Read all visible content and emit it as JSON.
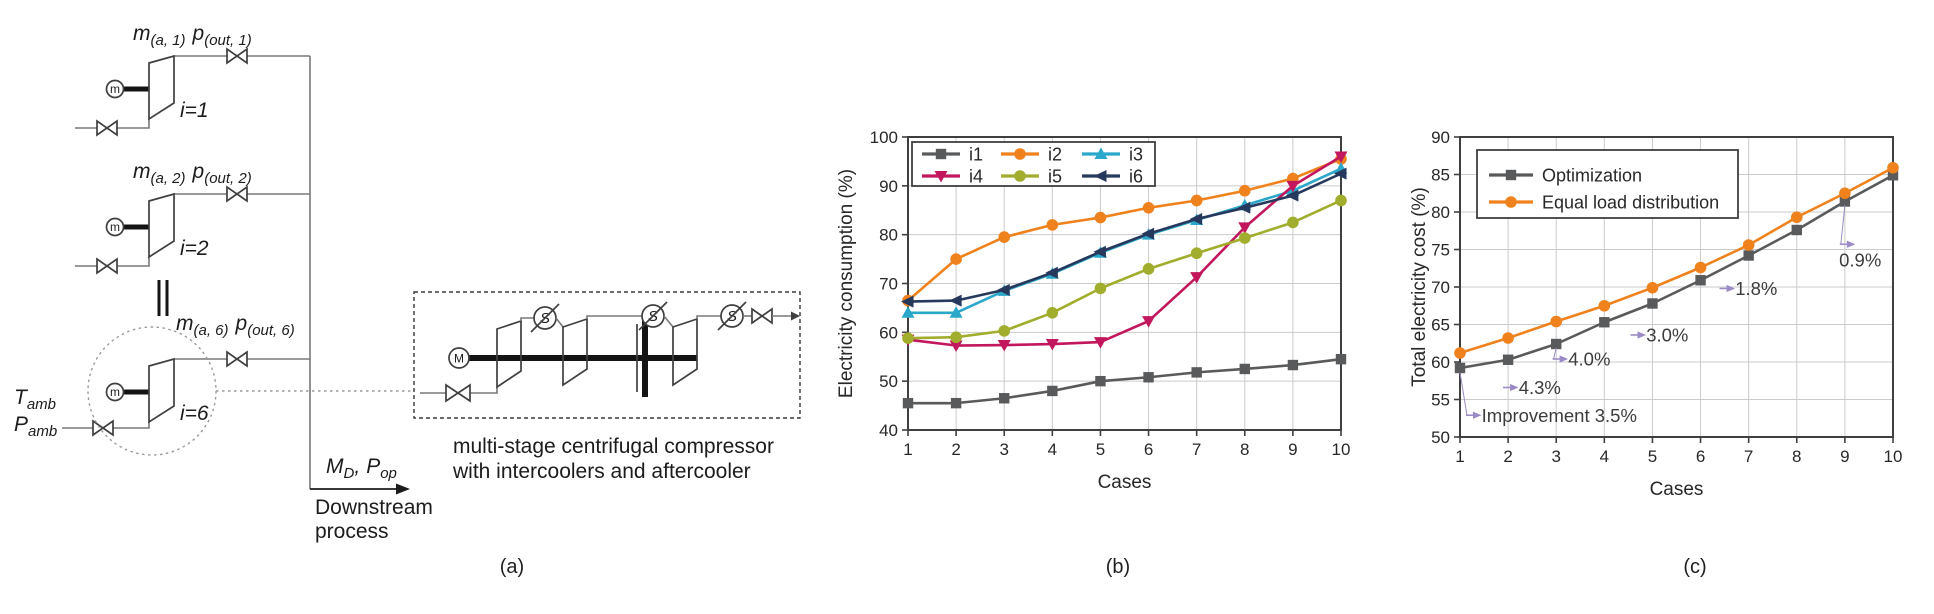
{
  "figure": {
    "captions": {
      "a": "(a)",
      "b": "(b)",
      "c": "(c)"
    }
  },
  "diagram": {
    "units": [
      {
        "m": "m",
        "m_sub": "(a, 1)",
        "p": "p",
        "p_sub": "(out, 1)",
        "i": "i=1",
        "motor": "m"
      },
      {
        "m": "m",
        "m_sub": "(a, 2)",
        "p": "p",
        "p_sub": "(out, 2)",
        "i": "i=2",
        "motor": "m"
      },
      {
        "m": "m",
        "m_sub": "(a, 6)",
        "p": "p",
        "p_sub": "(out, 6)",
        "i": "i=6",
        "motor": "m"
      }
    ],
    "t_amb": {
      "main": "T",
      "sub": "amb"
    },
    "p_amb": {
      "main": "P",
      "sub": "amb"
    },
    "md_pop": {
      "m_main": "M",
      "m_sub": "D",
      "sep": ",",
      "p_main": "P",
      "p_sub": "op"
    },
    "downstream": [
      "Downstream",
      "process"
    ],
    "detail_motor_label": "M",
    "cooler_label": "S",
    "detail_caption": [
      "multi-stage centrifugal compressor",
      "with intercoolers and aftercooler"
    ]
  },
  "chart_data": [
    {
      "id": "electricity-consumption",
      "type": "line",
      "title": "",
      "xlabel": "Cases",
      "ylabel": "Electricity consumption (%)",
      "xlim": [
        1,
        10
      ],
      "ylim": [
        40,
        100
      ],
      "xticks": [
        1,
        2,
        3,
        4,
        5,
        6,
        7,
        8,
        9,
        10
      ],
      "yticks": [
        40,
        50,
        60,
        70,
        80,
        90,
        100
      ],
      "grid": true,
      "legend_position": "top-left",
      "categories": [
        1,
        2,
        3,
        4,
        5,
        6,
        7,
        8,
        9,
        10
      ],
      "series": [
        {
          "name": "i1",
          "color": "#595a5c",
          "marker": "square",
          "values": [
            45.5,
            45.5,
            46.5,
            48.0,
            50.0,
            50.8,
            51.8,
            52.5,
            53.3,
            54.5
          ]
        },
        {
          "name": "i2",
          "color": "#f0821e",
          "marker": "circle",
          "values": [
            66.5,
            75.0,
            79.5,
            82.0,
            83.5,
            85.5,
            87.0,
            89.0,
            91.5,
            95.5
          ]
        },
        {
          "name": "i3",
          "color": "#2ba7c9",
          "marker": "triangle-up",
          "values": [
            64.0,
            64.0,
            68.5,
            72.0,
            76.3,
            80.0,
            83.0,
            86.0,
            89.0,
            93.5
          ]
        },
        {
          "name": "i4",
          "color": "#c2175d",
          "marker": "triangle-down",
          "values": [
            58.5,
            57.3,
            57.4,
            57.6,
            58.0,
            62.3,
            71.3,
            81.5,
            90.0,
            96.0
          ]
        },
        {
          "name": "i5",
          "color": "#a1ad2c",
          "marker": "circle",
          "values": [
            58.8,
            59.0,
            60.3,
            64.0,
            69.0,
            73.0,
            76.2,
            79.3,
            82.5,
            87.0
          ]
        },
        {
          "name": "i6",
          "color": "#26395c",
          "marker": "triangle-left",
          "values": [
            66.3,
            66.5,
            68.7,
            72.2,
            76.5,
            80.2,
            83.2,
            85.5,
            88.0,
            92.5
          ]
        }
      ]
    },
    {
      "id": "total-electricity-cost",
      "type": "line",
      "title": "",
      "xlabel": "Cases",
      "ylabel": "Total electricity cost (%)",
      "xlim": [
        1,
        10
      ],
      "ylim": [
        50,
        90
      ],
      "xticks": [
        1,
        2,
        3,
        4,
        5,
        6,
        7,
        8,
        9,
        10
      ],
      "yticks": [
        50,
        55,
        60,
        65,
        70,
        75,
        80,
        85,
        90
      ],
      "grid": true,
      "legend_position": "top-left",
      "annotation_color": "#9b8ac5",
      "categories": [
        1,
        2,
        3,
        4,
        5,
        6,
        7,
        8,
        9,
        10
      ],
      "series": [
        {
          "name": "Optimization",
          "color": "#595a5c",
          "marker": "square",
          "values": [
            59.2,
            60.3,
            62.4,
            65.3,
            67.8,
            70.9,
            74.2,
            77.6,
            81.4,
            84.9
          ]
        },
        {
          "name": "Equal load distribution",
          "color": "#f0821e",
          "marker": "circle",
          "values": [
            61.2,
            63.2,
            65.4,
            67.5,
            69.9,
            72.6,
            75.6,
            79.3,
            82.5,
            85.9
          ]
        }
      ],
      "annotations": [
        {
          "text": "Improvement 3.5%",
          "leader": true,
          "from_x": 1,
          "from_y": 58.6,
          "arrow_x": 1.27,
          "arrow_y": 52.9,
          "text_x": 1.45,
          "text_y": 52.9
        },
        {
          "text": "4.3%",
          "leader": false,
          "from_x": 2,
          "from_y": 60.3,
          "arrow_x": 2.04,
          "arrow_y": 56.6,
          "text_x": 2.22,
          "text_y": 56.6
        },
        {
          "text": "4.0%",
          "leader": true,
          "from_x": 3,
          "from_y": 61.9,
          "arrow_x": 3.07,
          "arrow_y": 60.4,
          "text_x": 3.25,
          "text_y": 60.4
        },
        {
          "text": "3.0%",
          "leader": false,
          "from_x": 5,
          "from_y": 67.8,
          "arrow_x": 4.69,
          "arrow_y": 63.6,
          "text_x": 4.87,
          "text_y": 63.6
        },
        {
          "text": "1.8%",
          "leader": false,
          "from_x": 7,
          "from_y": 74.2,
          "arrow_x": 6.54,
          "arrow_y": 69.8,
          "text_x": 6.72,
          "text_y": 69.8
        },
        {
          "text": "0.9%",
          "leader": true,
          "from_x": 9,
          "from_y": 80.9,
          "arrow_x": 9.04,
          "arrow_y": 75.7,
          "text_x": 8.88,
          "text_y": 73.6
        }
      ]
    }
  ]
}
